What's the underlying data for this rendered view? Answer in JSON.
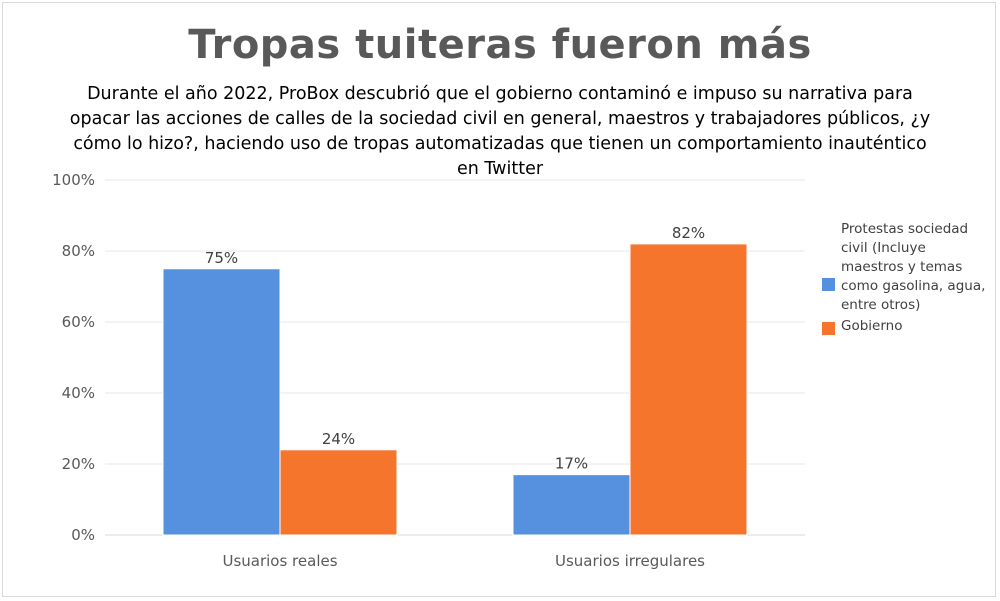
{
  "chart_data": {
    "type": "bar",
    "title": "Tropas tuiteras fueron más",
    "subtitle": "Durante el año 2022, ProBox descubrió que el gobierno contaminó e impuso su narrativa para opacar las acciones de calles de la sociedad civil en general, maestros y trabajadores públicos, ¿y cómo lo hizo?, haciendo uso de tropas automatizadas que tienen un comportamiento inauténtico en Twitter",
    "categories": [
      "Usuarios reales",
      "Usuarios irregulares"
    ],
    "series": [
      {
        "name": "Protestas sociedad civil (Incluye maestros y temas como gasolina, agua, entre otros)",
        "values": [
          75,
          17
        ],
        "color": "#5591de"
      },
      {
        "name": "Gobierno",
        "values": [
          24,
          82
        ],
        "color": "#f5752d"
      }
    ],
    "value_format": "percent",
    "ylim": [
      0,
      100
    ],
    "yticks": [
      "0%",
      "20%",
      "40%",
      "60%",
      "80%",
      "100%"
    ],
    "grid": true,
    "legend_position": "right",
    "xlabel": "",
    "ylabel": ""
  }
}
